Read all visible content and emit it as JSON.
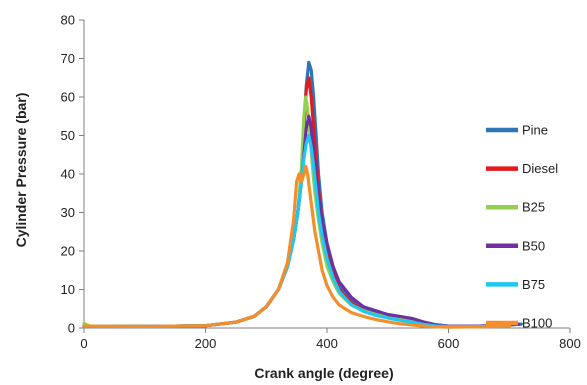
{
  "chart_data": {
    "type": "line",
    "title": "",
    "xlabel": "Crank angle  (degree)",
    "ylabel": "Cylinder Pressure (bar)",
    "xlim": [
      0,
      800
    ],
    "ylim": [
      0,
      80
    ],
    "xticks": [
      0,
      200,
      400,
      600,
      800
    ],
    "yticks": [
      0,
      10,
      20,
      30,
      40,
      50,
      60,
      70,
      80
    ],
    "grid": false,
    "legend_position": "right",
    "series": [
      {
        "name": "Pine",
        "color": "#2e75b6",
        "x": [
          0,
          100,
          200,
          250,
          280,
          300,
          320,
          335,
          345,
          352,
          358,
          362,
          366,
          370,
          374,
          378,
          382,
          386,
          392,
          400,
          410,
          420,
          440,
          460,
          480,
          500,
          520,
          540,
          560,
          580,
          600,
          650,
          700,
          720
        ],
        "y": [
          0.5,
          0.4,
          0.6,
          1.5,
          3,
          5.5,
          10,
          16,
          23,
          30,
          40,
          52,
          63,
          69,
          67,
          60,
          50,
          40,
          30,
          22,
          15,
          11,
          7,
          5,
          4,
          3,
          2.5,
          2,
          1.5,
          0.8,
          0.5,
          0.5,
          0.8,
          1
        ]
      },
      {
        "name": "Diesel",
        "color": "#e41a1c",
        "x": [
          0,
          100,
          200,
          250,
          280,
          300,
          320,
          335,
          345,
          352,
          358,
          362,
          366,
          370,
          374,
          378,
          382,
          386,
          392,
          400,
          410,
          420,
          440,
          460,
          480,
          500,
          520,
          540,
          560,
          580,
          600,
          650,
          700
        ],
        "y": [
          0.5,
          0.4,
          0.6,
          1.5,
          3,
          5.5,
          10,
          16,
          23,
          30,
          40,
          52,
          62,
          65,
          60,
          52,
          44,
          36,
          28,
          20,
          14,
          10,
          6.5,
          4.5,
          3.5,
          2.8,
          2.2,
          1.6,
          1,
          0.6,
          0.4,
          0.4,
          0.6
        ]
      },
      {
        "name": "B25",
        "color": "#92d050",
        "x": [
          0,
          5,
          10,
          100,
          200,
          250,
          280,
          300,
          320,
          335,
          345,
          352,
          358,
          362,
          365,
          368,
          372,
          376,
          380,
          386,
          392,
          400,
          410,
          420,
          440,
          460,
          480,
          500,
          520,
          540,
          560,
          580,
          600,
          650,
          700
        ],
        "y": [
          1.2,
          0.8,
          0.5,
          0.4,
          0.6,
          1.5,
          3,
          5.5,
          10,
          16,
          23,
          30,
          42,
          55,
          60,
          57,
          50,
          42,
          35,
          28,
          22,
          16,
          12,
          9,
          6,
          4.5,
          3.5,
          2.8,
          2.2,
          1.6,
          1,
          0.6,
          0.4,
          0.4,
          0.6
        ]
      },
      {
        "name": "B50",
        "color": "#7030a0",
        "x": [
          0,
          100,
          200,
          250,
          280,
          300,
          320,
          335,
          345,
          352,
          358,
          362,
          366,
          370,
          374,
          378,
          382,
          386,
          392,
          400,
          410,
          420,
          440,
          460,
          480,
          500,
          520,
          540,
          560,
          580,
          600,
          650,
          700,
          715
        ],
        "y": [
          0.5,
          0.4,
          0.6,
          1.5,
          3,
          5.5,
          10,
          16,
          23,
          30,
          38,
          45,
          52,
          55,
          52,
          46,
          40,
          34,
          28,
          22,
          16,
          12,
          8,
          5.5,
          4.5,
          3.5,
          3,
          2.5,
          1.5,
          0.8,
          0.5,
          0.5,
          0.8,
          1
        ]
      },
      {
        "name": "B75",
        "color": "#1ec8f0",
        "x": [
          0,
          100,
          200,
          250,
          280,
          300,
          320,
          335,
          345,
          352,
          358,
          362,
          366,
          370,
          374,
          378,
          382,
          386,
          392,
          400,
          410,
          420,
          440,
          460,
          480,
          500,
          520,
          540,
          560,
          580,
          600,
          650,
          700
        ],
        "y": [
          0.5,
          0.4,
          0.6,
          1.5,
          3,
          5.5,
          10,
          16,
          23,
          30,
          38,
          44,
          48,
          50,
          47,
          42,
          36,
          30,
          24,
          18,
          13,
          9.5,
          6,
          4.3,
          3.3,
          2.6,
          2,
          1.5,
          0.9,
          0.5,
          0.4,
          0.4,
          0.6
        ]
      },
      {
        "name": "B100",
        "color": "#f28e2b",
        "x": [
          0,
          100,
          200,
          250,
          280,
          300,
          320,
          335,
          345,
          350,
          354,
          358,
          362,
          365,
          368,
          372,
          376,
          380,
          386,
          392,
          400,
          410,
          420,
          440,
          460,
          480,
          500,
          520,
          540,
          560,
          580,
          600,
          650,
          700
        ],
        "y": [
          0.5,
          0.4,
          0.6,
          1.5,
          3,
          5.5,
          10,
          17,
          28,
          38,
          40,
          38,
          40,
          42,
          40,
          35,
          30,
          25,
          20,
          15,
          11,
          8,
          6,
          4,
          3,
          2.2,
          1.6,
          1.1,
          0.8,
          0.5,
          0.3,
          0.2,
          0.3,
          0.5
        ]
      }
    ]
  }
}
